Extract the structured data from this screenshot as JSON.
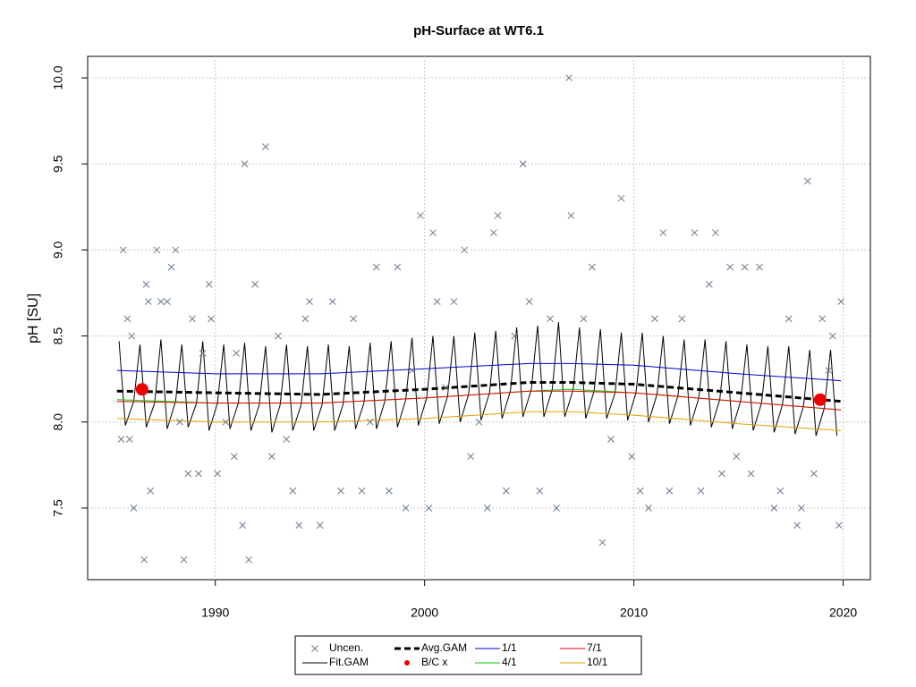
{
  "chart_data": {
    "type": "line",
    "title": "pH-Surface at WT6.1",
    "y_label": "pH [SU]",
    "xlim": [
      1983.9,
      2021.3
    ],
    "ylim": [
      7.084,
      10.125
    ],
    "xticks": [
      1990,
      2000,
      2010,
      2020
    ],
    "yticks": [
      7.5,
      {
        "value": 8,
        "label": "8.0"
      },
      8.5,
      {
        "value": 9,
        "label": "9.0"
      },
      9.5,
      {
        "value": 10,
        "label": "10.0"
      }
    ],
    "grid": true,
    "series": [
      {
        "name": "Uncen.",
        "marker": "x",
        "color": "#6a7a8c",
        "x": [
          1985.6,
          1985.8,
          1985.5,
          1985.9,
          1986.1,
          1986.0,
          1986.7,
          1986.8,
          1986.6,
          1986.9,
          1987.2,
          1987.4,
          1987.7,
          1987.9,
          1988.1,
          1988.3,
          1988.5,
          1988.7,
          1988.9,
          1989.2,
          1989.4,
          1989.7,
          1989.8,
          1990.1,
          1990.5,
          1990.9,
          1991.0,
          1991.3,
          1991.4,
          1991.6,
          1991.9,
          1992.4,
          1992.7,
          1993.0,
          1993.4,
          1993.7,
          1994.0,
          1994.3,
          1994.5,
          1995.0,
          1995.6,
          1996.0,
          1996.6,
          1997.0,
          1997.4,
          1997.7,
          1998.3,
          1998.7,
          1999.1,
          1999.4,
          1999.8,
          2000.2,
          2000.4,
          2000.6,
          2001.0,
          2001.4,
          2001.9,
          2002.2,
          2002.6,
          2003.0,
          2003.3,
          2003.5,
          2003.9,
          2004.3,
          2004.7,
          2005.0,
          2005.5,
          2006.0,
          2006.3,
          2006.9,
          2007.0,
          2007.6,
          2008.0,
          2008.5,
          2008.9,
          2009.4,
          2009.9,
          2010.3,
          2010.7,
          2011.0,
          2011.4,
          2011.7,
          2012.3,
          2012.9,
          2013.2,
          2013.6,
          2013.9,
          2014.2,
          2014.6,
          2014.9,
          2015.3,
          2015.6,
          2016.0,
          2016.7,
          2017.0,
          2017.4,
          2017.8,
          2018.0,
          2018.3,
          2018.6,
          2019.0,
          2019.3,
          2019.5,
          2019.8,
          2019.9
        ],
        "values": [
          9.0,
          8.6,
          7.9,
          7.9,
          7.5,
          8.5,
          8.8,
          8.7,
          7.2,
          7.6,
          9.0,
          8.7,
          8.7,
          8.9,
          9.0,
          8.0,
          7.2,
          7.7,
          8.6,
          7.7,
          8.4,
          8.8,
          8.6,
          7.7,
          8.0,
          7.8,
          8.4,
          7.4,
          9.5,
          7.2,
          8.8,
          9.6,
          7.8,
          8.5,
          7.9,
          7.6,
          7.4,
          8.6,
          8.7,
          7.4,
          8.7,
          7.6,
          8.6,
          7.6,
          8.0,
          8.9,
          7.6,
          8.9,
          7.5,
          8.3,
          9.2,
          7.5,
          9.1,
          8.7,
          8.2,
          8.7,
          9.0,
          7.8,
          8.0,
          7.5,
          9.1,
          9.2,
          7.6,
          8.5,
          9.5,
          8.7,
          7.6,
          8.6,
          7.5,
          10.0,
          9.2,
          8.6,
          8.9,
          7.3,
          7.9,
          9.3,
          7.8,
          7.6,
          7.5,
          8.6,
          9.1,
          7.6,
          8.6,
          9.1,
          7.6,
          8.8,
          9.1,
          7.7,
          8.9,
          7.8,
          8.9,
          7.7,
          8.9,
          7.5,
          7.6,
          8.6,
          7.4,
          7.5,
          9.4,
          7.7,
          8.6,
          8.3,
          8.5,
          7.4,
          8.7
        ]
      },
      {
        "name": "Fit.GAM",
        "color": "#000000",
        "x": [
          1985.4,
          1985.7,
          1986.1,
          1986.4,
          1986.7,
          1987.1,
          1987.4,
          1987.7,
          1988.1,
          1988.4,
          1988.7,
          1989.1,
          1989.4,
          1989.7,
          1990.1,
          1990.4,
          1990.7,
          1991.1,
          1991.4,
          1991.7,
          1992.1,
          1992.4,
          1992.7,
          1993.1,
          1993.4,
          1993.7,
          1994.1,
          1994.4,
          1994.7,
          1995.1,
          1995.4,
          1995.7,
          1996.1,
          1996.4,
          1996.7,
          1997.1,
          1997.4,
          1997.7,
          1998.1,
          1998.4,
          1998.7,
          1999.1,
          1999.4,
          1999.7,
          2000.1,
          2000.4,
          2000.7,
          2001.1,
          2001.4,
          2001.7,
          2002.1,
          2002.4,
          2002.7,
          2003.1,
          2003.4,
          2003.7,
          2004.1,
          2004.4,
          2004.7,
          2005.1,
          2005.4,
          2005.7,
          2006.1,
          2006.4,
          2006.7,
          2007.1,
          2007.4,
          2007.7,
          2008.1,
          2008.4,
          2008.7,
          2009.1,
          2009.4,
          2009.7,
          2010.1,
          2010.4,
          2010.7,
          2011.1,
          2011.4,
          2011.7,
          2012.1,
          2012.4,
          2012.7,
          2013.1,
          2013.4,
          2013.7,
          2014.1,
          2014.4,
          2014.7,
          2015.1,
          2015.4,
          2015.7,
          2016.1,
          2016.4,
          2016.7,
          2017.1,
          2017.4,
          2017.7,
          2018.1,
          2018.4,
          2018.7,
          2019.1,
          2019.4,
          2019.7
        ],
        "values": [
          8.47,
          7.98,
          8.12,
          8.45,
          7.97,
          8.11,
          8.48,
          7.96,
          8.12,
          8.45,
          7.97,
          8.11,
          8.47,
          7.95,
          8.11,
          8.45,
          7.96,
          8.11,
          8.46,
          7.95,
          8.1,
          8.44,
          7.94,
          8.1,
          8.45,
          7.95,
          8.1,
          8.44,
          7.95,
          8.1,
          8.45,
          7.95,
          8.1,
          8.44,
          7.96,
          8.11,
          8.46,
          7.96,
          8.12,
          8.47,
          7.97,
          8.13,
          8.49,
          7.98,
          8.14,
          8.5,
          7.99,
          8.15,
          8.5,
          8.0,
          8.16,
          8.52,
          8.01,
          8.17,
          8.53,
          8.02,
          8.18,
          8.55,
          8.03,
          8.19,
          8.56,
          8.03,
          8.19,
          8.58,
          8.03,
          8.19,
          8.55,
          8.02,
          8.18,
          8.54,
          8.02,
          8.17,
          8.52,
          8.01,
          8.17,
          8.52,
          8.0,
          8.16,
          8.5,
          7.99,
          8.15,
          8.48,
          7.98,
          8.14,
          8.48,
          7.97,
          8.13,
          8.47,
          7.96,
          8.12,
          8.45,
          7.95,
          8.11,
          8.44,
          7.94,
          8.1,
          8.44,
          7.93,
          8.09,
          8.42,
          7.92,
          8.08,
          8.42,
          7.92
        ]
      },
      {
        "name": "Avg.GAM",
        "color": "#000000",
        "line_style": "dashed",
        "x": [
          1985.3,
          1990,
          1995,
          2000,
          2005,
          2007,
          2010,
          2015,
          2019.9
        ],
        "values": [
          8.18,
          8.17,
          8.16,
          8.19,
          8.23,
          8.23,
          8.22,
          8.17,
          8.12
        ]
      },
      {
        "name": "B/C x",
        "marker": "dot",
        "color": "#ee0000",
        "x": [
          1986.5,
          2018.9
        ],
        "values": [
          8.19,
          8.13
        ]
      },
      {
        "name": "1/1",
        "color": "#0000cc",
        "x": [
          1985.3,
          1990,
          1995,
          2000,
          2005,
          2007,
          2010,
          2015,
          2019.9
        ],
        "values": [
          8.3,
          8.28,
          8.28,
          8.31,
          8.34,
          8.34,
          8.33,
          8.28,
          8.24
        ]
      },
      {
        "name": "4/1",
        "color": "#00cc00",
        "x": [
          1985.3,
          1990,
          1995,
          2000,
          2005,
          2007,
          2010,
          2015,
          2019.9
        ],
        "values": [
          8.13,
          8.11,
          8.11,
          8.14,
          8.18,
          8.19,
          8.17,
          8.12,
          8.07
        ]
      },
      {
        "name": "7/1",
        "color": "#ee0000",
        "x": [
          1985.3,
          1990,
          1995,
          2000,
          2005,
          2007,
          2010,
          2015,
          2019.9
        ],
        "values": [
          8.12,
          8.11,
          8.11,
          8.14,
          8.18,
          8.18,
          8.17,
          8.12,
          8.07
        ]
      },
      {
        "name": "10/1",
        "color": "#e69f00",
        "x": [
          1985.3,
          1990,
          1995,
          2000,
          2005,
          2007,
          2010,
          2015,
          2019.9
        ],
        "values": [
          8.02,
          8.0,
          8.0,
          8.02,
          8.06,
          8.06,
          8.04,
          7.99,
          7.95
        ]
      }
    ]
  }
}
